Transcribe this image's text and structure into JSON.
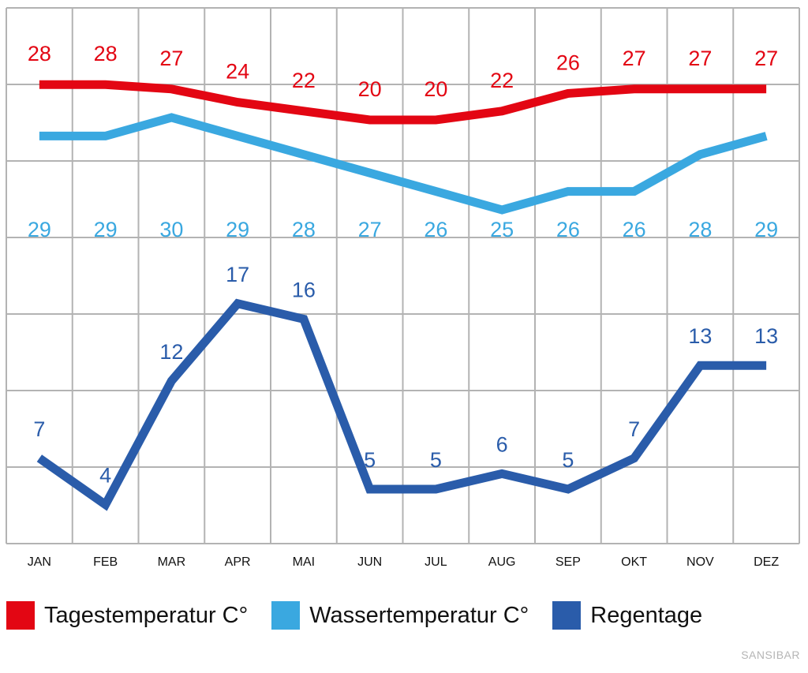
{
  "chart_data": {
    "type": "line",
    "title": "SANSIBAR",
    "categories": [
      "JAN",
      "FEB",
      "MAR",
      "APR",
      "MAI",
      "JUN",
      "JUL",
      "AUG",
      "SEP",
      "OKT",
      "NOV",
      "DEZ"
    ],
    "series": [
      {
        "name": "Tagestemperatur C°",
        "color": "#e30613",
        "values": [
          28,
          28,
          27,
          24,
          22,
          20,
          20,
          22,
          26,
          27,
          27,
          27
        ]
      },
      {
        "name": "Wassertemperatur C°",
        "color": "#3aa8e0",
        "values": [
          29,
          29,
          30,
          29,
          28,
          27,
          26,
          25,
          26,
          26,
          28,
          29
        ]
      },
      {
        "name": "Regentage",
        "color": "#2a5caa",
        "values": [
          7,
          4,
          12,
          17,
          16,
          5,
          5,
          6,
          5,
          7,
          13,
          13
        ]
      }
    ],
    "grid": true,
    "legend_position": "bottom"
  },
  "legend": [
    {
      "label": "Tagestemperatur C°",
      "color": "#e30613"
    },
    {
      "label": "Wassertemperatur C°",
      "color": "#3aa8e0"
    },
    {
      "label": "Regentage",
      "color": "#2a5caa"
    }
  ],
  "brand": "SANSIBAR"
}
